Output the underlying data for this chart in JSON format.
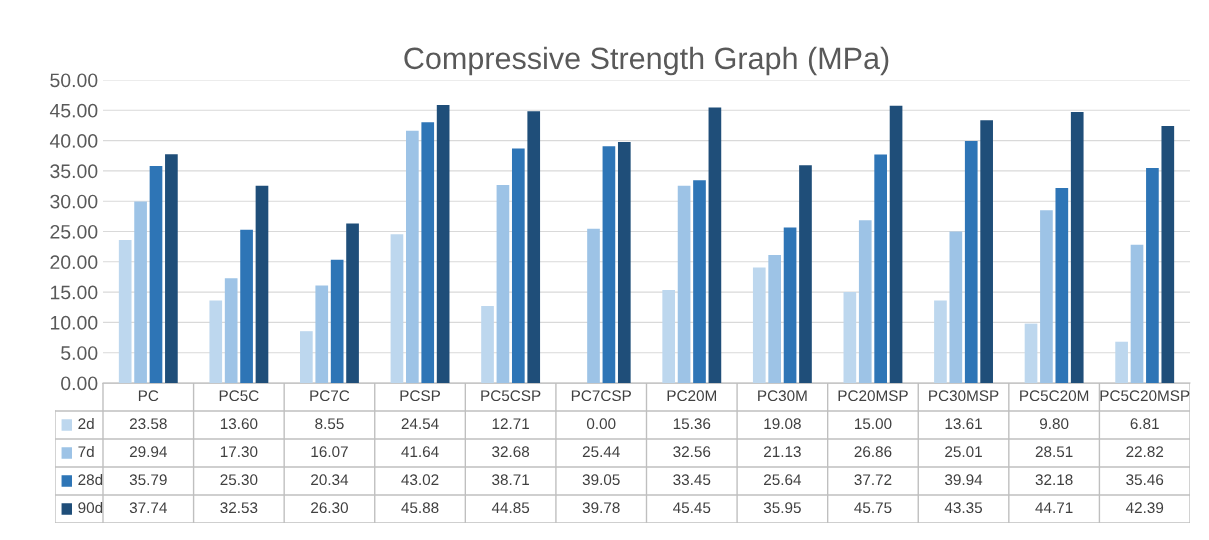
{
  "chart_data": {
    "type": "bar",
    "title": "Compressive Strength Graph (MPa)",
    "categories": [
      "PC",
      "PC5C",
      "PC7C",
      "PCSP",
      "PC5CSP",
      "PC7CSP",
      "PC20M",
      "PC30M",
      "PC20MSP",
      "PC30MSP",
      "PC5C20M",
      "PC5C20MSP"
    ],
    "series": [
      {
        "name": "2d",
        "color": "#bdd7ee",
        "values": [
          23.58,
          13.6,
          8.55,
          24.54,
          12.71,
          0.0,
          15.36,
          19.08,
          15.0,
          13.61,
          9.8,
          6.81
        ],
        "value_labels": [
          "23.58",
          "13.60",
          "8.55",
          "24.54",
          "12.71",
          "0.00",
          "15.36",
          "19.08",
          "15.00",
          "13.61",
          "9.80",
          "6.81"
        ]
      },
      {
        "name": "7d",
        "color": "#9dc3e6",
        "values": [
          29.94,
          17.3,
          16.07,
          41.64,
          32.68,
          25.44,
          32.56,
          21.13,
          26.86,
          25.01,
          28.51,
          22.82
        ],
        "value_labels": [
          "29.94",
          "17.30",
          "16.07",
          "41.64",
          "32.68",
          "25.44",
          "32.56",
          "21.13",
          "26.86",
          "25.01",
          "28.51",
          "22.82"
        ]
      },
      {
        "name": "28d",
        "color": "#2e75b6",
        "values": [
          35.79,
          25.3,
          20.34,
          43.02,
          38.71,
          39.05,
          33.45,
          25.64,
          37.72,
          39.94,
          32.18,
          35.46
        ],
        "value_labels": [
          "35.79",
          "25.30",
          "20.34",
          "43.02",
          "38.71",
          "39.05",
          "33.45",
          "25.64",
          "37.72",
          "39.94",
          "32.18",
          "35.46"
        ]
      },
      {
        "name": "90d",
        "color": "#1f4e79",
        "values": [
          37.74,
          32.53,
          26.3,
          45.88,
          44.85,
          39.78,
          45.45,
          35.95,
          45.75,
          43.35,
          44.71,
          42.39
        ],
        "value_labels": [
          "37.74",
          "32.53",
          "26.30",
          "45.88",
          "44.85",
          "39.78",
          "45.45",
          "35.95",
          "45.75",
          "43.35",
          "44.71",
          "42.39"
        ]
      }
    ],
    "ylim": [
      0,
      50
    ],
    "yticks": [
      {
        "value": 0,
        "label": "0.00"
      },
      {
        "value": 5,
        "label": "5.00"
      },
      {
        "value": 10,
        "label": "10.00"
      },
      {
        "value": 15,
        "label": "15.00"
      },
      {
        "value": 20,
        "label": "20.00"
      },
      {
        "value": 25,
        "label": "25.00"
      },
      {
        "value": 30,
        "label": "30.00"
      },
      {
        "value": 35,
        "label": "35.00"
      },
      {
        "value": 40,
        "label": "40.00"
      },
      {
        "value": 45,
        "label": "45.00"
      },
      {
        "value": 50,
        "label": "50.00"
      }
    ],
    "grid": "y",
    "legend": "bottom",
    "data_labels": true
  }
}
